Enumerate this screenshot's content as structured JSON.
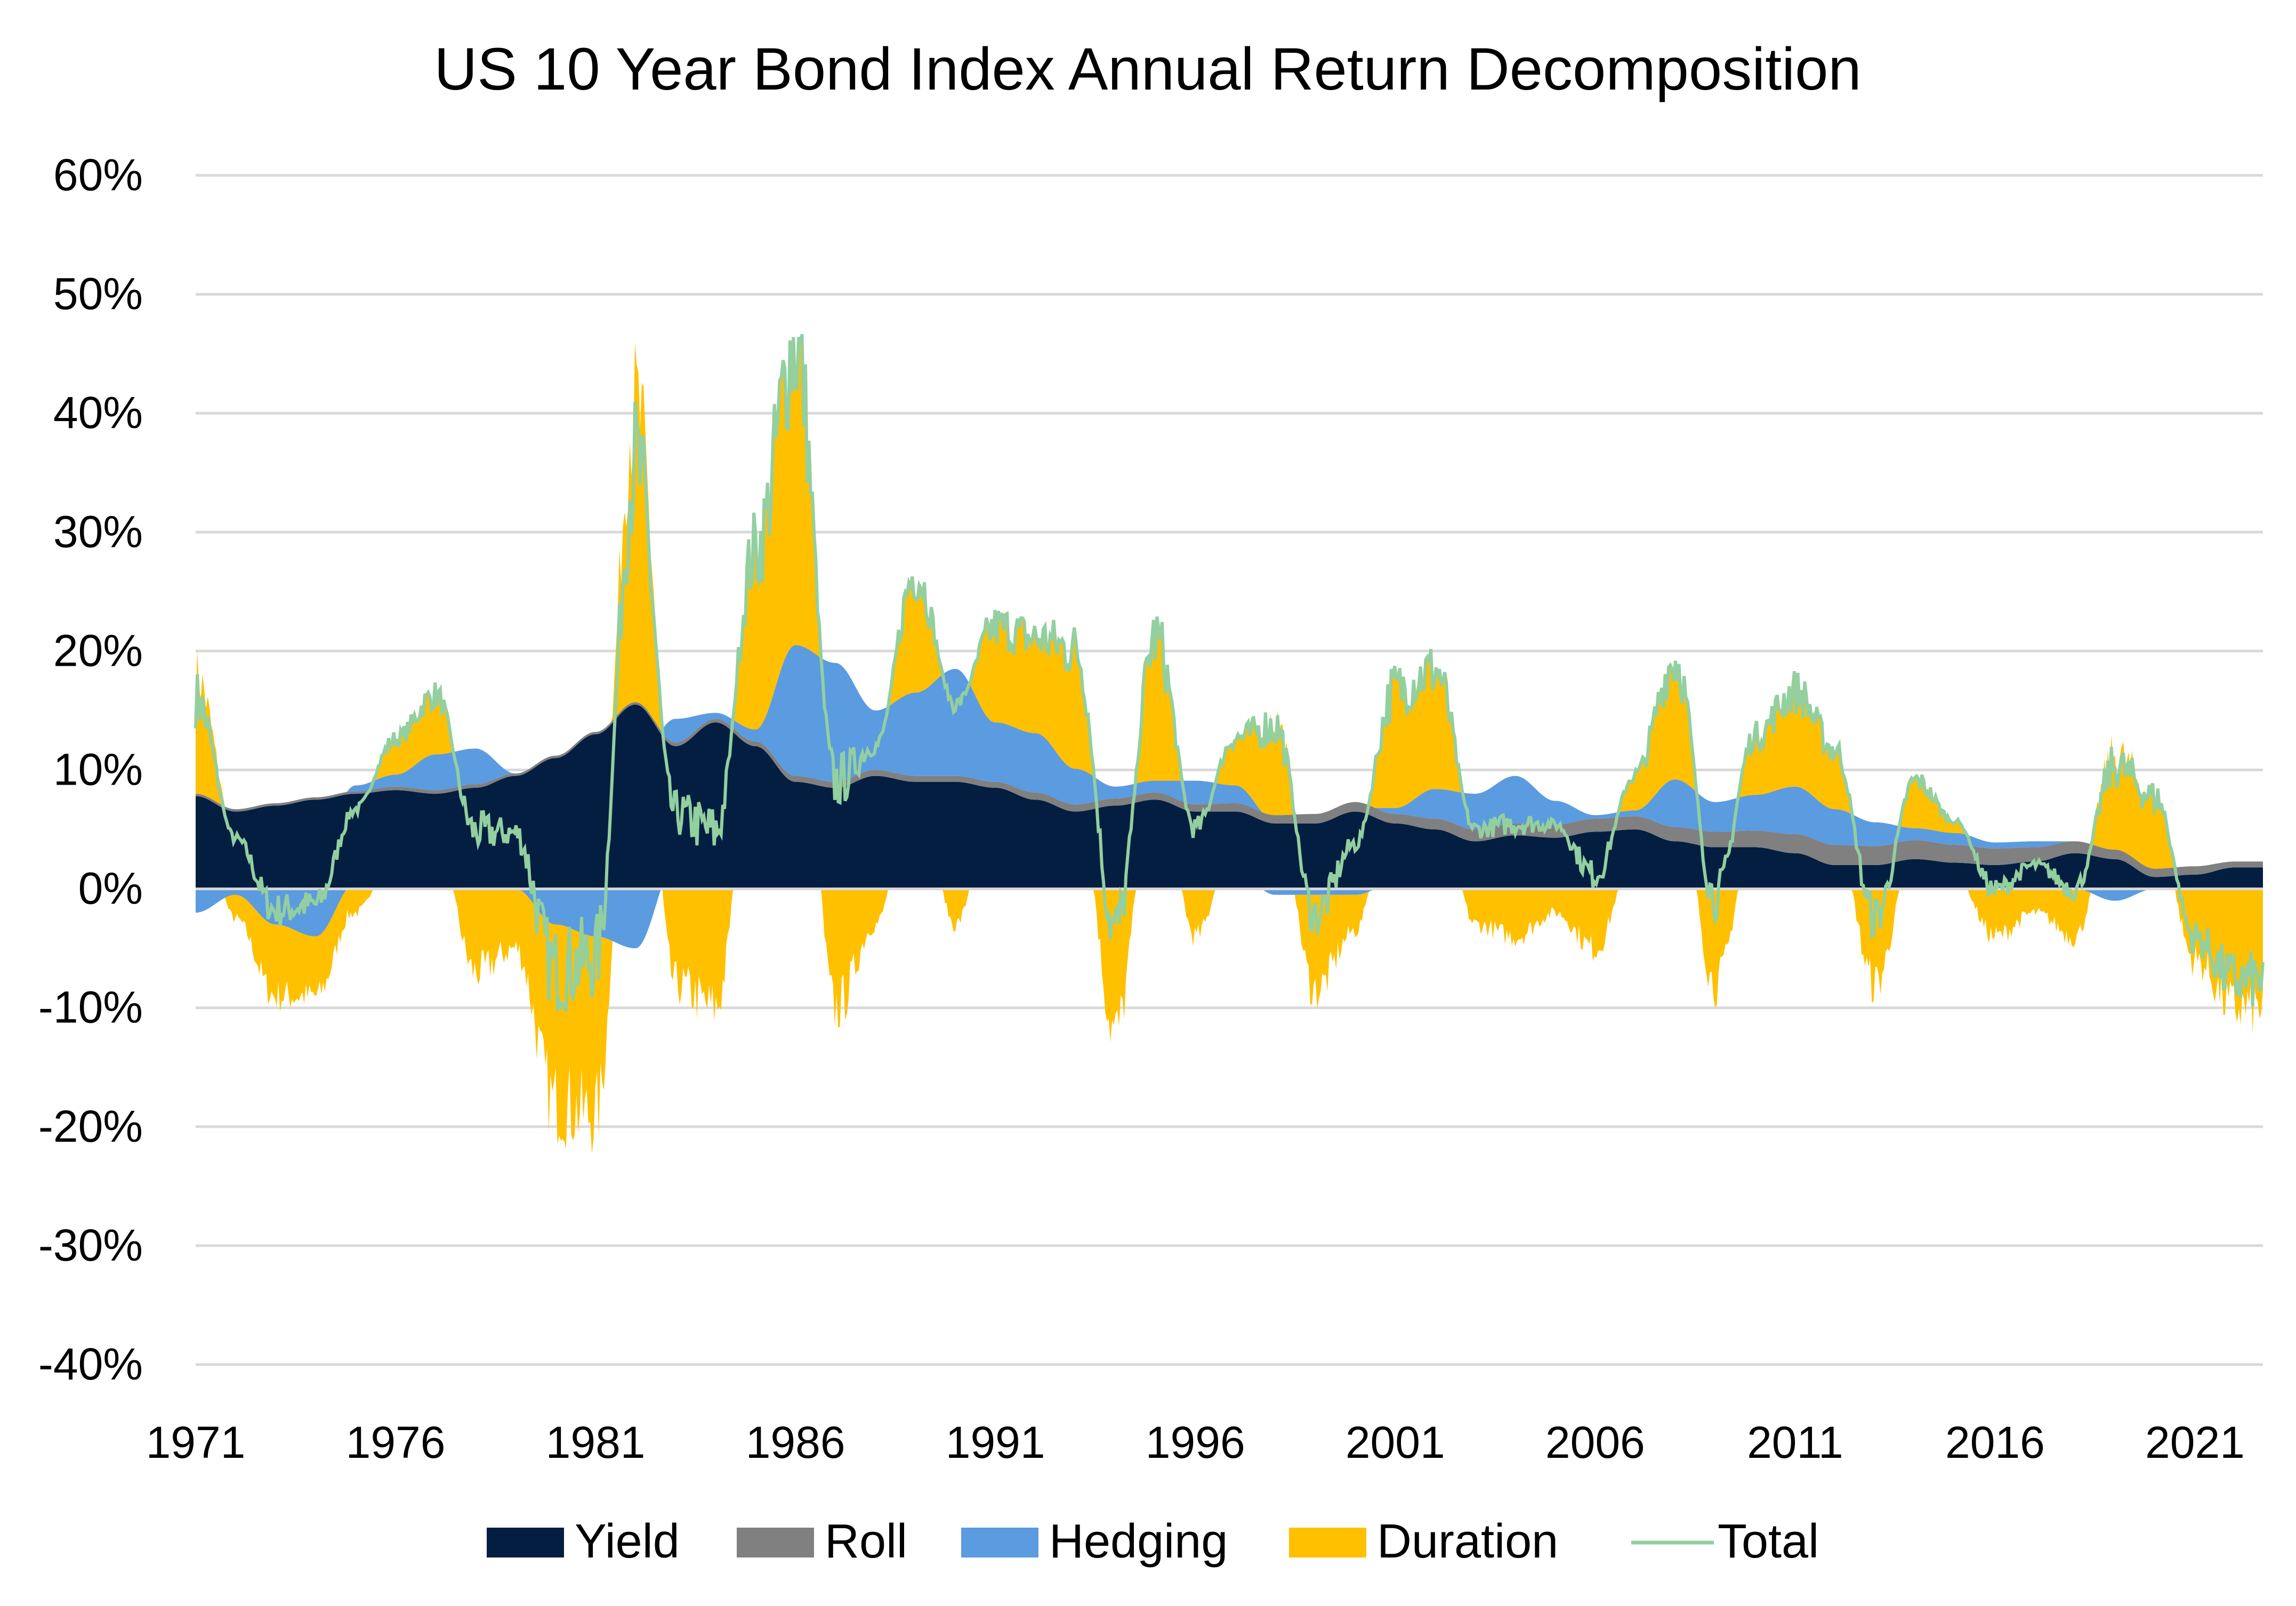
{
  "chart_data": {
    "type": "area",
    "title": "US 10 Year Bond Index Annual Return Decomposition",
    "xlabel": "",
    "ylabel": "",
    "xlim": [
      1971,
      2022.7
    ],
    "ylim": [
      -40,
      60
    ],
    "x_ticks": [
      "1971",
      "1976",
      "1981",
      "1986",
      "1991",
      "1996",
      "2001",
      "2006",
      "2011",
      "2016",
      "2021"
    ],
    "y_ticks": [
      "60%",
      "50%",
      "40%",
      "30%",
      "20%",
      "10%",
      "0%",
      "-10%",
      "-20%",
      "-30%",
      "-40%"
    ],
    "grid": true,
    "stacked": true,
    "legend_position": "bottom",
    "colors": {
      "Yield": "#031e41",
      "Roll": "#808080",
      "Hedging": "#5b9be0",
      "Duration": "#ffc000",
      "Total": "#93cf9f",
      "grid": "#d9d9d9"
    },
    "x": [
      1971,
      1972,
      1973,
      1974,
      1975,
      1976,
      1977,
      1978,
      1979,
      1980,
      1981,
      1982,
      1983,
      1984,
      1985,
      1986,
      1987,
      1988,
      1989,
      1990,
      1991,
      1992,
      1993,
      1994,
      1995,
      1996,
      1997,
      1998,
      1999,
      2000,
      2001,
      2002,
      2003,
      2004,
      2005,
      2006,
      2007,
      2008,
      2009,
      2010,
      2011,
      2012,
      2013,
      2014,
      2015,
      2016,
      2017,
      2018,
      2019,
      2020,
      2021,
      2022
    ],
    "series": [
      {
        "name": "Yield",
        "type": "area",
        "values": [
          7.8,
          6.5,
          7,
          7.5,
          8,
          8.3,
          8,
          8.5,
          9.5,
          11,
          13,
          15.5,
          12,
          14,
          12,
          9,
          8.5,
          9.5,
          9,
          9,
          8.5,
          7.5,
          6.5,
          7,
          7.5,
          6.5,
          6.5,
          5.5,
          5.5,
          6.5,
          5.5,
          5,
          4,
          4.5,
          4.3,
          4.8,
          5,
          4,
          3.5,
          3.5,
          3,
          2,
          2,
          2.5,
          2.2,
          2,
          2.3,
          3,
          2.5,
          1,
          1.2,
          1.8
        ]
      },
      {
        "name": "Roll",
        "type": "area",
        "values": [
          0.2,
          0.2,
          0.2,
          0.2,
          0.2,
          0.3,
          0.3,
          0.3,
          0.2,
          0.2,
          0.2,
          0.2,
          0.3,
          0.3,
          0.4,
          0.5,
          0.5,
          0.5,
          0.5,
          0.5,
          0.5,
          0.6,
          0.6,
          0.6,
          0.6,
          0.6,
          0.7,
          0.7,
          0.8,
          0.8,
          0.8,
          0.9,
          1,
          1,
          1.1,
          1.1,
          1.1,
          1.2,
          1.3,
          1.4,
          1.6,
          1.7,
          1.6,
          1.6,
          1.5,
          1.4,
          1.2,
          1,
          0.8,
          0.7,
          0.7,
          0.5
        ]
      },
      {
        "name": "Hedging",
        "type": "area",
        "values": [
          -2,
          -0.5,
          -3,
          -4,
          0.5,
          1,
          3,
          3,
          0,
          -3,
          -4,
          -5,
          2,
          0.5,
          1,
          11,
          10,
          5,
          7,
          9,
          5,
          5,
          3,
          1,
          1,
          2,
          1.5,
          -0.5,
          -0.5,
          -0.5,
          0.5,
          2.5,
          3,
          4,
          2,
          0.3,
          0.5,
          4,
          2.5,
          3,
          4,
          3,
          2,
          1,
          1,
          0.5,
          0.5,
          0,
          -1,
          0,
          0,
          0
        ]
      },
      {
        "name": "Duration",
        "type": "area",
        "values": [
          10,
          -2,
          -6,
          -5,
          -2,
          3,
          5,
          -7,
          -5,
          -15,
          -15,
          25,
          -8,
          -10,
          15,
          25,
          -10,
          -3,
          10,
          -3,
          8,
          8,
          10,
          -12,
          12,
          -4,
          4,
          8,
          -8,
          -3,
          10,
          10,
          -3,
          -4,
          -2,
          -5,
          3,
          10,
          -8,
          5,
          8,
          5,
          -8,
          4,
          1,
          -4,
          -2,
          -4,
          8,
          6,
          -6,
          -10
        ]
      },
      {
        "name": "Total",
        "type": "line"
      }
    ]
  }
}
